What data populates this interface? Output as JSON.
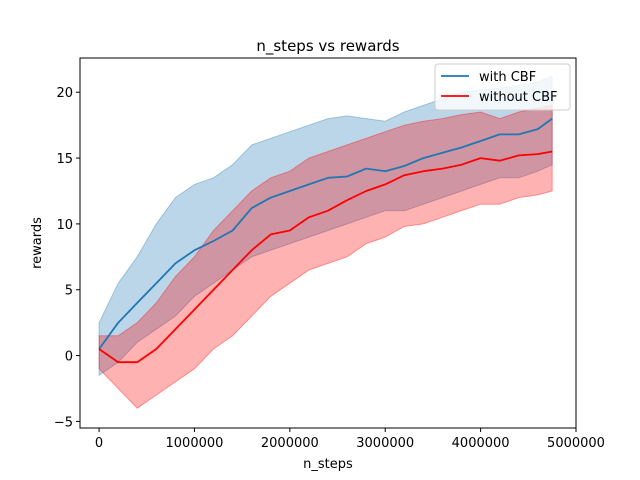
{
  "chart_data": {
    "type": "line",
    "title": "n_steps vs rewards",
    "xlabel": "n_steps",
    "ylabel": "rewards",
    "xlim": [
      -200000,
      5000000
    ],
    "ylim": [
      -5.5,
      22.6
    ],
    "xticks": [
      0,
      1000000,
      2000000,
      3000000,
      4000000,
      5000000
    ],
    "xtick_labels": [
      "0",
      "1000000",
      "2000000",
      "3000000",
      "4000000",
      "5000000"
    ],
    "yticks": [
      -5,
      0,
      5,
      10,
      15,
      20
    ],
    "ytick_labels": [
      "−5",
      "0",
      "5",
      "10",
      "15",
      "20"
    ],
    "grid": false,
    "legend": {
      "position": "top-right"
    },
    "series": [
      {
        "name": "with CBF",
        "color": "#1f77b4",
        "band_color": "#1f77b4",
        "x": [
          0,
          200000,
          400000,
          600000,
          800000,
          1000000,
          1200000,
          1400000,
          1600000,
          1800000,
          2000000,
          2200000,
          2400000,
          2600000,
          2800000,
          3000000,
          3200000,
          3400000,
          3600000,
          3800000,
          4000000,
          4200000,
          4400000,
          4600000,
          4750000
        ],
        "mean": [
          0.5,
          2.5,
          4.0,
          5.5,
          7.0,
          8.0,
          8.7,
          9.5,
          11.2,
          12.0,
          12.5,
          13.0,
          13.5,
          13.6,
          14.2,
          14.0,
          14.4,
          15.0,
          15.4,
          15.8,
          16.3,
          16.8,
          16.8,
          17.2,
          18.0
        ],
        "upper": [
          2.5,
          5.5,
          7.5,
          10.0,
          12.0,
          13.0,
          13.5,
          14.5,
          16.0,
          16.5,
          17.0,
          17.5,
          18.0,
          18.2,
          18.0,
          17.8,
          18.5,
          19.0,
          19.5,
          20.0,
          20.2,
          20.3,
          20.5,
          20.8,
          21.2
        ],
        "lower": [
          -1.5,
          -0.5,
          1.0,
          2.0,
          3.0,
          4.5,
          5.5,
          6.5,
          7.5,
          8.0,
          8.5,
          9.0,
          9.5,
          10.0,
          10.5,
          11.0,
          11.0,
          11.5,
          12.0,
          12.5,
          13.0,
          13.5,
          13.5,
          14.0,
          14.5
        ]
      },
      {
        "name": "without CBF",
        "color": "#ff0000",
        "band_color": "#ff0000",
        "x": [
          0,
          200000,
          400000,
          600000,
          800000,
          1000000,
          1200000,
          1400000,
          1600000,
          1800000,
          2000000,
          2200000,
          2400000,
          2600000,
          2800000,
          3000000,
          3200000,
          3400000,
          3600000,
          3800000,
          4000000,
          4200000,
          4400000,
          4600000,
          4750000
        ],
        "mean": [
          0.5,
          -0.5,
          -0.5,
          0.5,
          2.0,
          3.5,
          5.0,
          6.5,
          8.0,
          9.2,
          9.5,
          10.5,
          11.0,
          11.8,
          12.5,
          13.0,
          13.7,
          14.0,
          14.2,
          14.5,
          15.0,
          14.8,
          15.2,
          15.3,
          15.5
        ],
        "upper": [
          1.5,
          1.5,
          2.5,
          4.0,
          6.0,
          7.5,
          9.5,
          11.0,
          12.5,
          13.5,
          14.0,
          15.0,
          15.5,
          16.0,
          16.5,
          17.0,
          17.5,
          17.8,
          18.0,
          18.3,
          18.5,
          18.0,
          18.5,
          18.8,
          19.0
        ],
        "lower": [
          -1.0,
          -2.5,
          -4.0,
          -3.0,
          -2.0,
          -1.0,
          0.5,
          1.5,
          3.0,
          4.5,
          5.5,
          6.5,
          7.0,
          7.5,
          8.5,
          9.0,
          9.8,
          10.0,
          10.5,
          11.0,
          11.5,
          11.5,
          12.0,
          12.2,
          12.5
        ]
      }
    ]
  }
}
